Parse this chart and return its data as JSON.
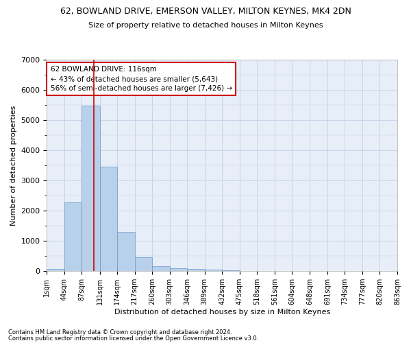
{
  "title": "62, BOWLAND DRIVE, EMERSON VALLEY, MILTON KEYNES, MK4 2DN",
  "subtitle": "Size of property relative to detached houses in Milton Keynes",
  "xlabel": "Distribution of detached houses by size in Milton Keynes",
  "ylabel": "Number of detached properties",
  "footnote1": "Contains HM Land Registry data © Crown copyright and database right 2024.",
  "footnote2": "Contains public sector information licensed under the Open Government Licence v3.0.",
  "bar_color": "#b8d0ea",
  "bar_edge_color": "#6699cc",
  "grid_color": "#c8d4e8",
  "bg_color": "#e8eef8",
  "annotation_box_color": "#cc0000",
  "redline_color": "#cc0000",
  "property_size": 116,
  "annotation_text": "62 BOWLAND DRIVE: 116sqm\n← 43% of detached houses are smaller (5,643)\n56% of semi-detached houses are larger (7,426) →",
  "bin_edges": [
    1,
    44,
    87,
    131,
    174,
    217,
    260,
    303,
    346,
    389,
    432,
    475,
    518,
    561,
    604,
    648,
    691,
    734,
    777,
    820,
    863
  ],
  "bin_labels": [
    "1sqm",
    "44sqm",
    "87sqm",
    "131sqm",
    "174sqm",
    "217sqm",
    "260sqm",
    "303sqm",
    "346sqm",
    "389sqm",
    "432sqm",
    "475sqm",
    "518sqm",
    "561sqm",
    "604sqm",
    "648sqm",
    "691sqm",
    "734sqm",
    "777sqm",
    "820sqm",
    "863sqm"
  ],
  "bar_heights": [
    75,
    2280,
    5480,
    3460,
    1310,
    460,
    165,
    95,
    65,
    45,
    20,
    10,
    5,
    3,
    2,
    1,
    1,
    0,
    0,
    0
  ],
  "ylim": [
    0,
    7000
  ],
  "yticks": [
    0,
    1000,
    2000,
    3000,
    4000,
    5000,
    6000,
    7000
  ]
}
